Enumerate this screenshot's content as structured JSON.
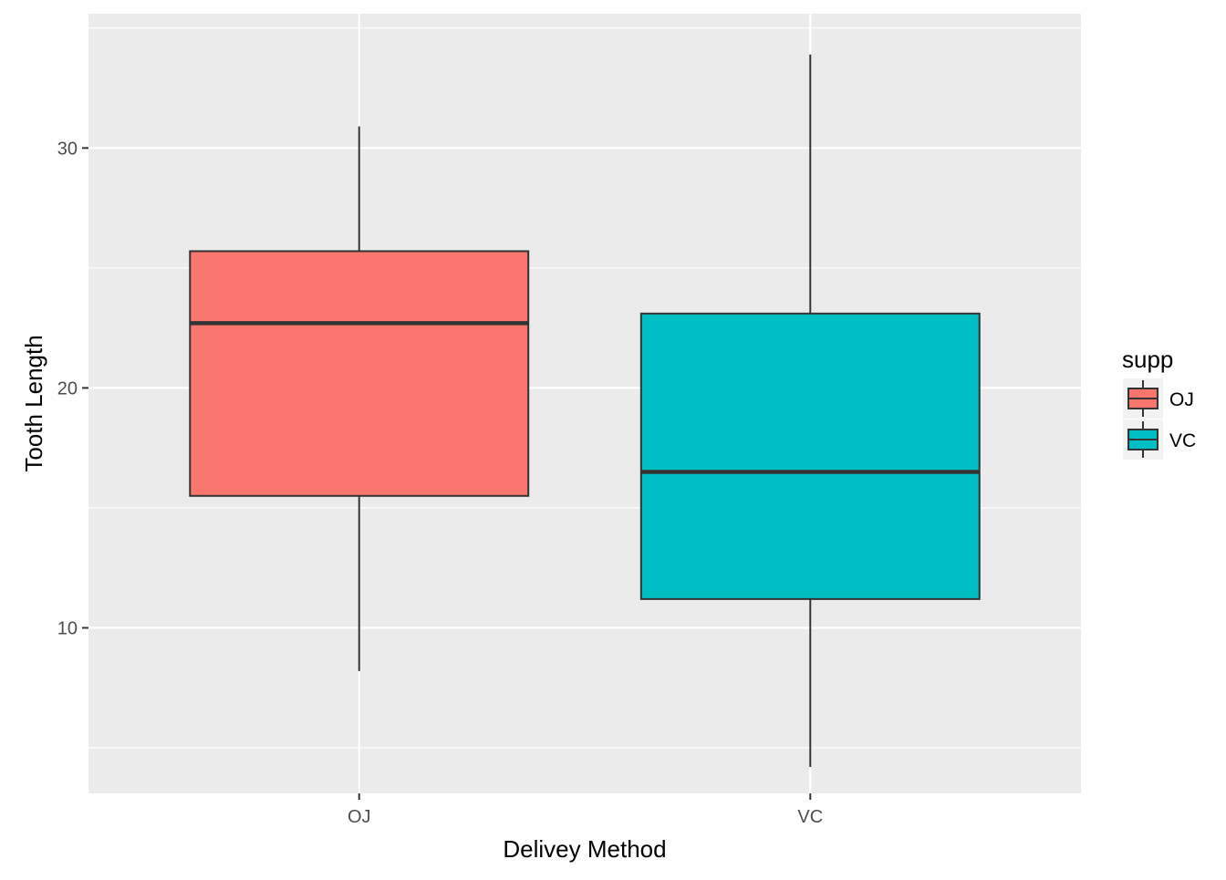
{
  "chart_data": {
    "type": "box",
    "title": "",
    "xlabel": "Delivey Method",
    "ylabel": "Tooth Length",
    "categories": [
      "OJ",
      "VC"
    ],
    "y_ticks": [
      10,
      20,
      30
    ],
    "ylim": [
      3.1,
      35.6
    ],
    "grid": true,
    "legend": {
      "title": "supp",
      "placement": "right",
      "entries": [
        "OJ",
        "VC"
      ]
    },
    "colors": {
      "OJ": "#F8766D",
      "VC": "#00BFC4",
      "panel": "#EBEBEB",
      "grid": "#FFFFFF",
      "outline": "#333333"
    },
    "series": [
      {
        "name": "OJ",
        "category": "OJ",
        "min": 8.2,
        "q1": 15.5,
        "median": 22.7,
        "q3": 25.7,
        "max": 30.9
      },
      {
        "name": "VC",
        "category": "VC",
        "min": 4.2,
        "q1": 11.2,
        "median": 16.5,
        "q3": 23.1,
        "max": 33.9
      }
    ]
  }
}
